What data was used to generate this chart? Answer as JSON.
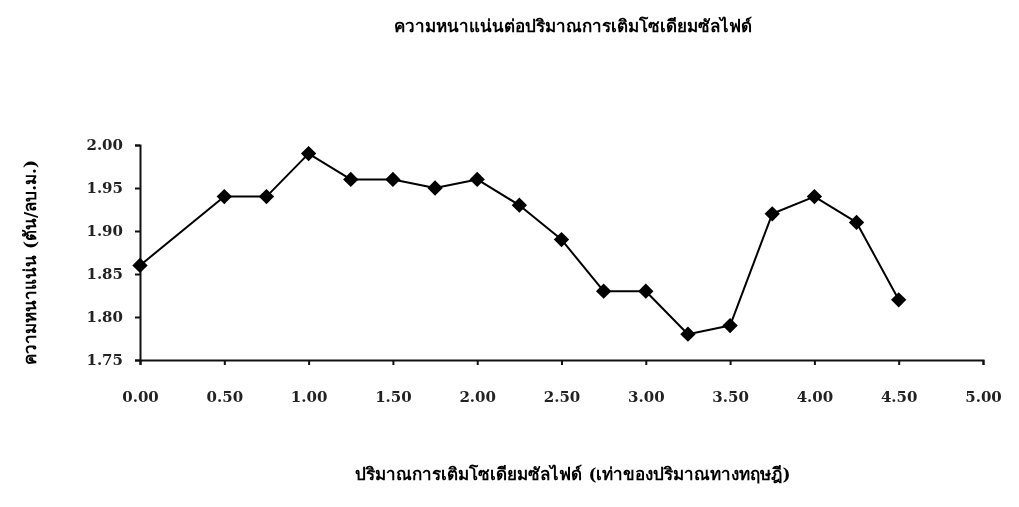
{
  "chart_data": {
    "type": "line",
    "title": "ความหนาแน่นต่อปริมาณการเติมโซเดียมซัลไฟด์",
    "xlabel": "ปริมาณการเติมโซเดียมซัลไฟด์ (เท่าของปริมาณทางทฤษฎี)",
    "ylabel": "ความหนาแน่น (ตัน/ลบ.ม.)",
    "x": [
      0,
      0.5,
      0.75,
      1.0,
      1.25,
      1.5,
      1.75,
      2.0,
      2.25,
      2.5,
      2.75,
      3.0,
      3.25,
      3.5,
      3.75,
      4.0,
      4.25,
      4.5
    ],
    "series": [
      {
        "color": "#000000",
        "values": [
          1.86,
          1.94,
          1.94,
          1.99,
          1.96,
          1.96,
          1.95,
          1.96,
          1.93,
          1.89,
          1.83,
          1.83,
          1.78,
          1.79,
          1.92,
          1.94,
          1.91,
          1.82
        ]
      }
    ],
    "xlim": [
      0,
      5
    ],
    "xticks": [
      {
        "value": 0,
        "label": "0.00"
      },
      {
        "value": 0.5,
        "label": "0.50"
      },
      {
        "value": 1,
        "label": "1.00"
      },
      {
        "value": 1.5,
        "label": "1.50"
      },
      {
        "value": 2,
        "label": "2.00"
      },
      {
        "value": 2.5,
        "label": "2.50"
      },
      {
        "value": 3,
        "label": "3.00"
      },
      {
        "value": 3.5,
        "label": "3.50"
      },
      {
        "value": 4,
        "label": "4.00"
      },
      {
        "value": 4.5,
        "label": "4.50"
      },
      {
        "value": 5,
        "label": "5.00"
      }
    ],
    "ylim": [
      1.75,
      2.0
    ],
    "yticks": [
      {
        "value": 1.75,
        "label": "1.75"
      },
      {
        "value": 1.8,
        "label": "1.80"
      },
      {
        "value": 1.85,
        "label": "1.85"
      },
      {
        "value": 1.9,
        "label": "1.90"
      },
      {
        "value": 1.95,
        "label": "1.95"
      },
      {
        "value": 2.0,
        "label": "2.00"
      }
    ],
    "grid": false,
    "marker": "diamond",
    "line_style": "solid"
  }
}
